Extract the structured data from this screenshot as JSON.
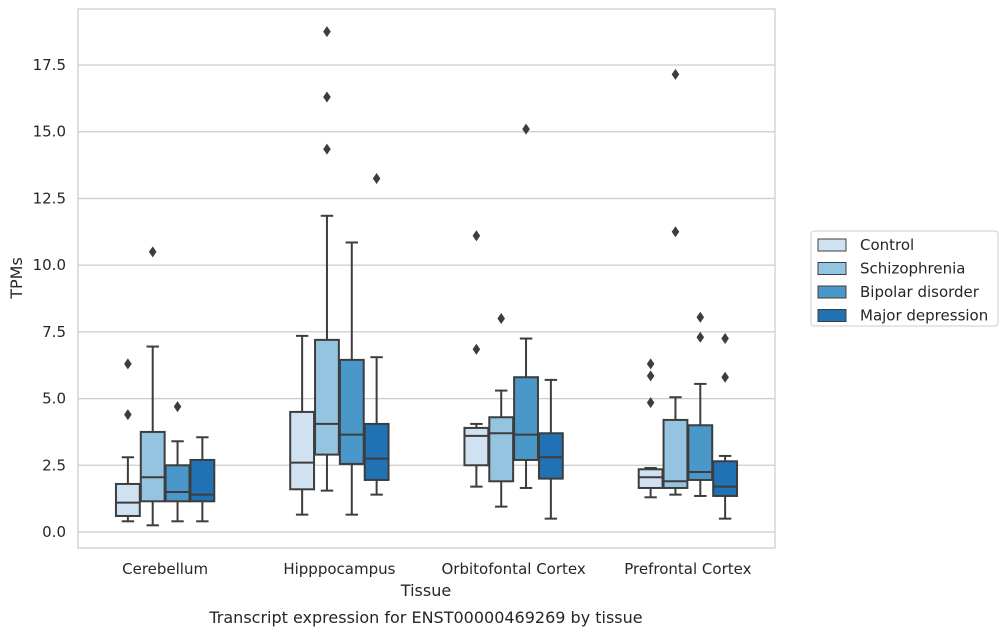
{
  "chart_data": {
    "type": "boxplot",
    "title": "",
    "caption": "Transcript expression for ENST00000469269 by tissue",
    "xlabel": "Tissue",
    "ylabel": "TPMs",
    "ylim": [
      -0.6,
      19.6
    ],
    "yticks": [
      0.0,
      2.5,
      5.0,
      7.5,
      10.0,
      12.5,
      15.0,
      17.5
    ],
    "ytick_labels": [
      "0.0",
      "2.5",
      "5.0",
      "7.5",
      "10.0",
      "12.5",
      "15.0",
      "17.5"
    ],
    "grid": "horizontal",
    "legend_placement": "right",
    "categories": [
      "Cerebellum",
      "Hipppocampus",
      "Orbitofontal Cortex",
      "Prefrontal Cortex"
    ],
    "series": [
      {
        "name": "Control",
        "color": "#d0e1f2",
        "boxes": [
          {
            "whislo": 0.4,
            "q1": 0.6,
            "med": 1.1,
            "q3": 1.8,
            "whishi": 2.8,
            "fliers": [
              4.4,
              6.3
            ]
          },
          {
            "whislo": 0.65,
            "q1": 1.6,
            "med": 2.6,
            "q3": 4.5,
            "whishi": 7.35,
            "fliers": []
          },
          {
            "whislo": 1.7,
            "q1": 2.5,
            "med": 3.6,
            "q3": 3.9,
            "whishi": 4.05,
            "fliers": [
              6.85,
              11.1
            ]
          },
          {
            "whislo": 1.3,
            "q1": 1.65,
            "med": 2.05,
            "q3": 2.35,
            "whishi": 2.4,
            "fliers": [
              4.85,
              5.85,
              6.3
            ]
          }
        ]
      },
      {
        "name": "Schizophrenia",
        "color": "#94c4df",
        "boxes": [
          {
            "whislo": 0.25,
            "q1": 1.15,
            "med": 2.05,
            "q3": 3.75,
            "whishi": 6.95,
            "fliers": [
              10.5
            ]
          },
          {
            "whislo": 1.55,
            "q1": 2.9,
            "med": 4.05,
            "q3": 7.2,
            "whishi": 11.85,
            "fliers": [
              14.35,
              16.3,
              18.75
            ]
          },
          {
            "whislo": 0.95,
            "q1": 1.9,
            "med": 3.7,
            "q3": 4.3,
            "whishi": 5.3,
            "fliers": [
              8.0
            ]
          },
          {
            "whislo": 1.4,
            "q1": 1.65,
            "med": 1.9,
            "q3": 4.2,
            "whishi": 5.05,
            "fliers": [
              11.25,
              17.15
            ]
          }
        ]
      },
      {
        "name": "Bipolar disorder",
        "color": "#4a98c9",
        "boxes": [
          {
            "whislo": 0.4,
            "q1": 1.15,
            "med": 1.5,
            "q3": 2.5,
            "whishi": 3.4,
            "fliers": [
              4.7
            ]
          },
          {
            "whislo": 0.65,
            "q1": 2.55,
            "med": 3.65,
            "q3": 6.45,
            "whishi": 10.85,
            "fliers": []
          },
          {
            "whislo": 1.65,
            "q1": 2.7,
            "med": 3.65,
            "q3": 5.8,
            "whishi": 7.25,
            "fliers": [
              15.1
            ]
          },
          {
            "whislo": 1.35,
            "q1": 1.95,
            "med": 2.25,
            "q3": 4.0,
            "whishi": 5.55,
            "fliers": [
              7.3,
              8.05
            ]
          }
        ]
      },
      {
        "name": "Major depression",
        "color": "#2171b5",
        "boxes": [
          {
            "whislo": 0.4,
            "q1": 1.15,
            "med": 1.4,
            "q3": 2.7,
            "whishi": 3.55,
            "fliers": []
          },
          {
            "whislo": 1.4,
            "q1": 1.95,
            "med": 2.75,
            "q3": 4.05,
            "whishi": 6.55,
            "fliers": [
              13.25
            ]
          },
          {
            "whislo": 0.5,
            "q1": 2.0,
            "med": 2.8,
            "q3": 3.7,
            "whishi": 5.7,
            "fliers": []
          },
          {
            "whislo": 0.5,
            "q1": 1.35,
            "med": 1.7,
            "q3": 2.65,
            "whishi": 2.85,
            "fliers": [
              5.8,
              7.25
            ]
          }
        ]
      }
    ]
  }
}
